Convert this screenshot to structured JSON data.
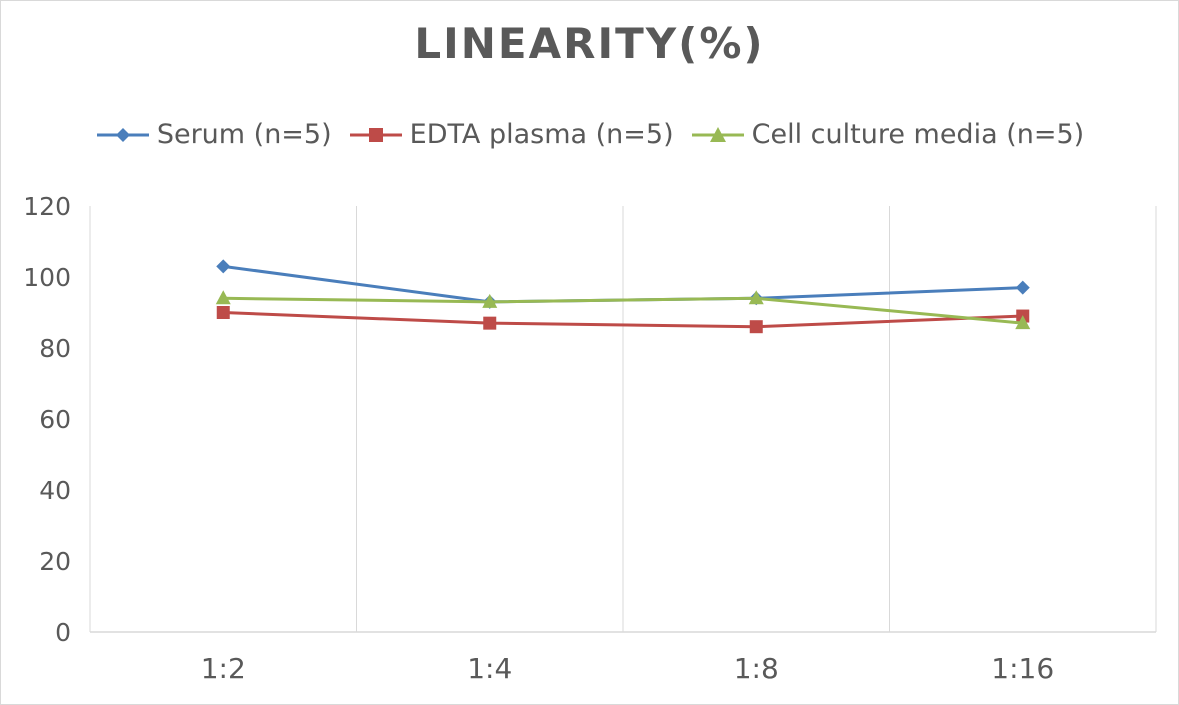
{
  "chart_data": {
    "type": "line",
    "title": "LINEARITY(%)",
    "xlabel": "",
    "ylabel": "",
    "categories": [
      "1:2",
      "1:4",
      "1:8",
      "1:16"
    ],
    "ylim": [
      0,
      120
    ],
    "yticks": [
      0,
      20,
      40,
      60,
      80,
      100,
      120
    ],
    "grid": "vertical category separators",
    "legend_position": "top",
    "series": [
      {
        "name": "Serum (n=5)",
        "values": [
          103,
          93,
          94,
          97
        ],
        "color": "#4a7ebb",
        "marker": "diamond"
      },
      {
        "name": "EDTA plasma (n=5)",
        "values": [
          90,
          87,
          86,
          89
        ],
        "color": "#be4b48",
        "marker": "square"
      },
      {
        "name": "Cell culture media (n=5)",
        "values": [
          94,
          93,
          94,
          87
        ],
        "color": "#98b954",
        "marker": "triangle"
      }
    ]
  }
}
